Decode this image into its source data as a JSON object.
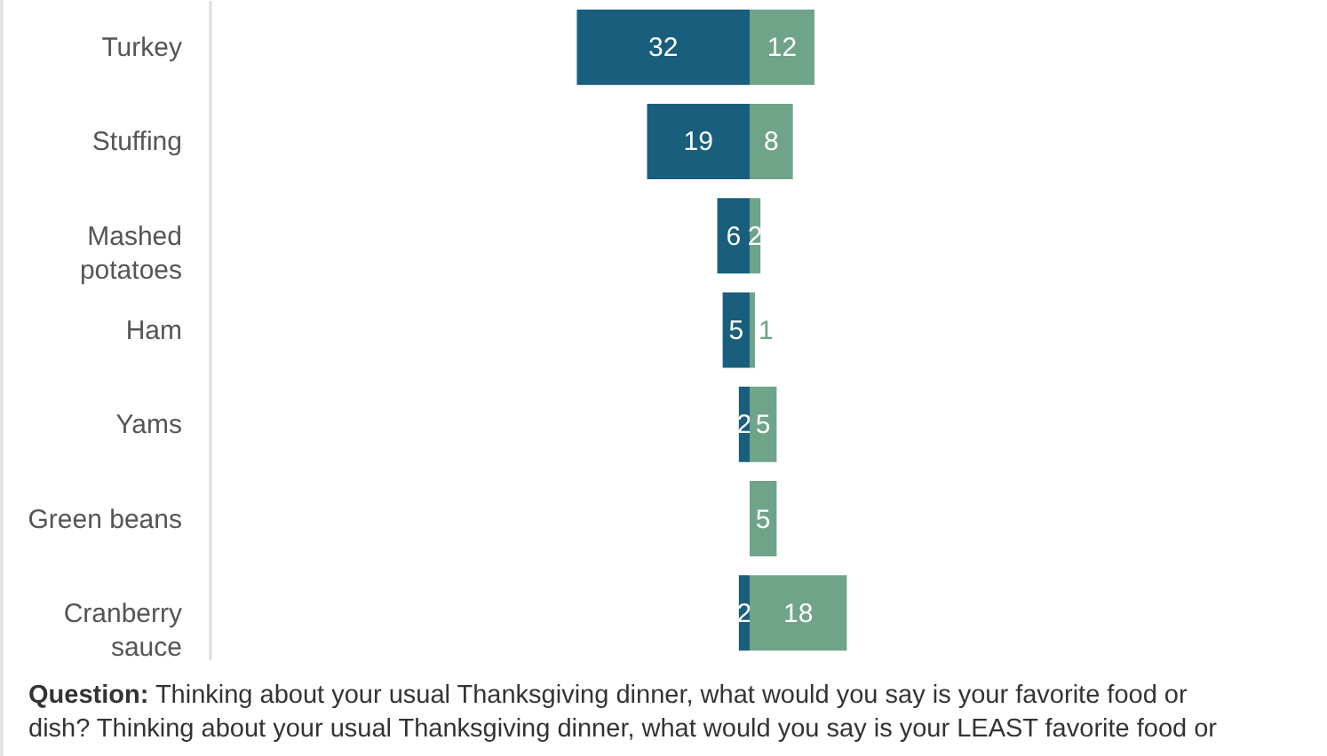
{
  "chart_data": [
    {
      "type": "bar",
      "orientation": "horizontal",
      "data_labels": true,
      "categories": [
        "Turkey",
        "Stuffing",
        "Mashed potatoes",
        "Ham",
        "Yams",
        "Green beans",
        "Cranberry sauce"
      ],
      "series": [
        {
          "color": "#195e7d",
          "values": [
            32,
            19,
            6,
            5,
            2,
            null,
            2
          ]
        }
      ],
      "xlim": [
        100,
        0
      ],
      "tick_labels": "y",
      "annotations": [
        "Question: Thinking about your usual Thanksgiving dinner, what would you say is your favorite food or dish? Thinking about your usual Thanksgiving dinner, what would you say is your LEAST favorite food or"
      ]
    },
    {
      "type": "bar",
      "orientation": "horizontal",
      "data_labels": true,
      "categories": [
        null,
        null,
        null,
        null,
        null,
        null,
        null
      ],
      "series": [
        {
          "color": "#6fa488",
          "values": [
            12,
            8,
            2,
            1,
            5,
            5,
            18
          ]
        }
      ],
      "tick_labels": false
    }
  ]
}
